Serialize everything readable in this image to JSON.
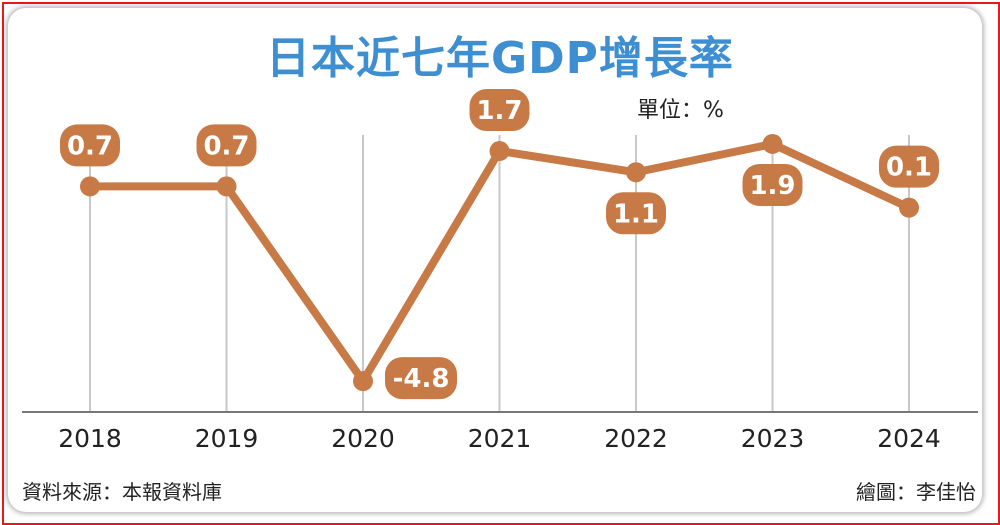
{
  "title": "日本近七年GDP增長率",
  "unit_label": "單位：%",
  "source": "資料來源：本報資料庫",
  "credit": "繪圖：李佳怡",
  "colors": {
    "line": "#c87a46",
    "title": "#3d8fd1",
    "frame": "#e8191e",
    "grid": "#c8c8c8",
    "axis": "#777777"
  },
  "chart_data": {
    "type": "line",
    "title": "日本近七年GDP增長率",
    "ylabel": "單位：%",
    "xlabel": "",
    "categories": [
      "2018",
      "2019",
      "2020",
      "2021",
      "2022",
      "2023",
      "2024"
    ],
    "series": [
      {
        "values": [
          0.7,
          0.7,
          -4.8,
          1.7,
          1.1,
          1.9,
          0.1
        ],
        "labels": [
          "0.7",
          "0.7",
          "-4.8",
          "1.7",
          "1.1",
          "1.9",
          "0.1"
        ],
        "label_positions": [
          "above",
          "above",
          "right",
          "above",
          "below",
          "below",
          "above"
        ]
      }
    ],
    "grid": "vertical",
    "legend": "none"
  }
}
